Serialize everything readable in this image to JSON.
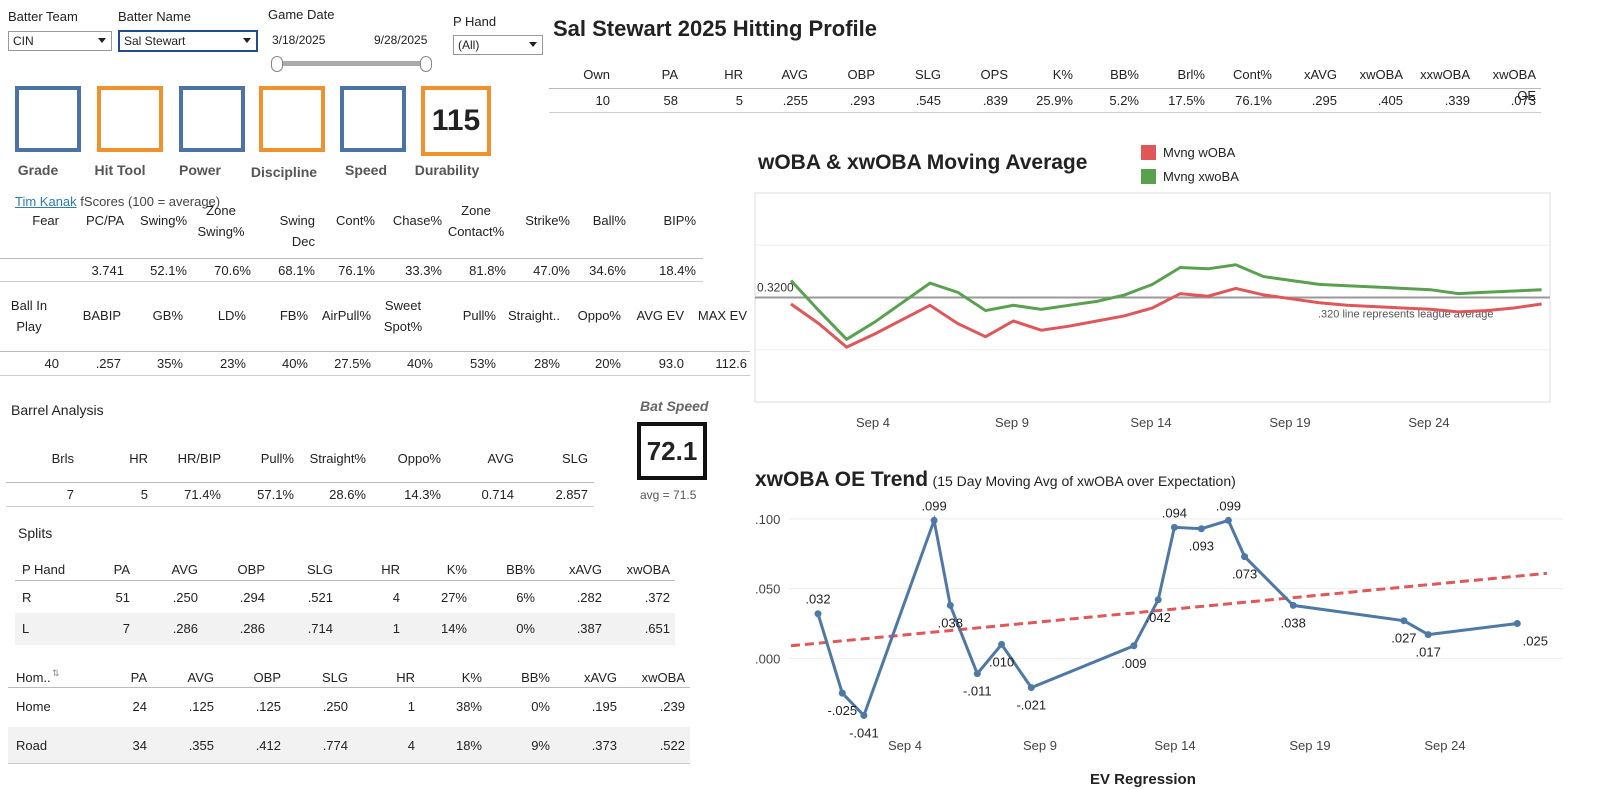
{
  "filters": {
    "batter_team_label": "Batter Team",
    "batter_team_value": "CIN",
    "batter_name_label": "Batter Name",
    "batter_name_value": "Sal Stewart",
    "game_date_label": "Game Date",
    "date_start": "3/18/2025",
    "date_end": "9/28/2025",
    "p_hand_label": "P Hand",
    "p_hand_value": "(All)"
  },
  "grades": [
    {
      "label": "Grade",
      "value": "",
      "color": "blue"
    },
    {
      "label": "Hit Tool",
      "value": "",
      "color": "orange"
    },
    {
      "label": "Power",
      "value": "",
      "color": "blue"
    },
    {
      "label": "Discipline",
      "value": "",
      "color": "orange"
    },
    {
      "label": "Speed",
      "value": "",
      "color": "blue"
    },
    {
      "label": "Durability",
      "value": "115",
      "color": "orange"
    }
  ],
  "fscores": {
    "link": "Tim Kanak",
    "suffix": "fScores (100 = average)"
  },
  "table1": {
    "headers": [
      "Fear",
      "PC/PA",
      "Swing%",
      "Zone Swing%",
      "Swing Dec",
      "Cont%",
      "Chase%",
      "Zone Contact%",
      "Strike%",
      "Ball%",
      "BIP%"
    ],
    "values": [
      "",
      "3.741",
      "52.1%",
      "70.6%",
      "68.1%",
      "76.1%",
      "33.3%",
      "81.8%",
      "47.0%",
      "34.6%",
      "18.4%"
    ]
  },
  "table2": {
    "headers": [
      "Ball In Play",
      "BABIP",
      "GB%",
      "LD%",
      "FB%",
      "AirPull%",
      "Sweet Spot%",
      "Pull%",
      "Straight..",
      "Oppo%",
      "AVG EV",
      "MAX EV"
    ],
    "values": [
      "40",
      ".257",
      "35%",
      "23%",
      "40%",
      "27.5%",
      "40%",
      "53%",
      "28%",
      "20%",
      "93.0",
      "112.6"
    ]
  },
  "barrel": {
    "title": "Barrel Analysis",
    "headers": [
      "Brls",
      "HR",
      "HR/BIP",
      "Pull%",
      "Straight%",
      "Oppo%",
      "AVG",
      "SLG"
    ],
    "values": [
      "7",
      "5",
      "71.4%",
      "57.1%",
      "28.6%",
      "14.3%",
      "0.714",
      "2.857"
    ]
  },
  "bat_speed": {
    "label": "Bat Speed",
    "value": "72.1",
    "avg": "avg = 71.5"
  },
  "splits": {
    "title": "Splits",
    "phand_headers": [
      "P Hand",
      "PA",
      "AVG",
      "OBP",
      "SLG",
      "HR",
      "K%",
      "BB%",
      "xAVG",
      "xwOBA"
    ],
    "phand_rows": [
      [
        "R",
        "51",
        ".250",
        ".294",
        ".521",
        "4",
        "27%",
        "6%",
        ".282",
        ".372"
      ],
      [
        "L",
        "7",
        ".286",
        ".286",
        ".714",
        "1",
        "14%",
        "0%",
        ".387",
        ".651"
      ]
    ],
    "home_headers": [
      "Hom..",
      "PA",
      "AVG",
      "OBP",
      "SLG",
      "HR",
      "K%",
      "BB%",
      "xAVG",
      "xwOBA"
    ],
    "home_rows": [
      [
        "Home",
        "24",
        ".125",
        ".125",
        ".250",
        "1",
        "38%",
        "0%",
        ".195",
        ".239"
      ],
      [
        "Road",
        "34",
        ".355",
        ".412",
        ".774",
        "4",
        "18%",
        "9%",
        ".373",
        ".522"
      ]
    ]
  },
  "profile": {
    "title": "Sal Stewart 2025 Hitting Profile",
    "headers": [
      "Own",
      "PA",
      "HR",
      "AVG",
      "OBP",
      "SLG",
      "OPS",
      "K%",
      "BB%",
      "Brl%",
      "Cont%",
      "xAVG",
      "xwOBA",
      "xxwOBA",
      "xwOBA OE"
    ],
    "values": [
      "10",
      "58",
      "5",
      ".255",
      ".293",
      ".545",
      ".839",
      "25.9%",
      "5.2%",
      "17.5%",
      "76.1%",
      ".295",
      ".405",
      ".339",
      ".073"
    ]
  },
  "chart_data": [
    {
      "type": "line",
      "title": "wOBA & xwOBA Moving Average",
      "ref_label": "0.3200",
      "ref_value": 0.32,
      "annotation": ".320 line represents league average",
      "x_ticks": [
        "Sep 4",
        "Sep 9",
        "Sep 14",
        "Sep 19",
        "Sep 24"
      ],
      "x_range": [
        1,
        29
      ],
      "ylim": [
        0.24,
        0.4
      ],
      "colors": {
        "wOBA": "#e15759",
        "xwOBA": "#59a14f"
      },
      "series": [
        {
          "name": "Mvng wOBA",
          "days": [
            1,
            2,
            3,
            4,
            5,
            6,
            7,
            8,
            9,
            10,
            11,
            12,
            13,
            14,
            15,
            16,
            17,
            18,
            19,
            20,
            21,
            22,
            23,
            24,
            25,
            26,
            27,
            28
          ],
          "values": [
            0.315,
            0.3,
            0.282,
            0.292,
            0.303,
            0.314,
            0.3,
            0.29,
            0.302,
            0.295,
            0.298,
            0.302,
            0.306,
            0.312,
            0.323,
            0.321,
            0.327,
            0.322,
            0.319,
            0.316,
            0.314,
            0.313,
            0.312,
            0.311,
            0.309,
            0.31,
            0.312,
            0.315
          ]
        },
        {
          "name": "Mvng xwoBA",
          "days": [
            1,
            2,
            3,
            4,
            5,
            6,
            7,
            8,
            9,
            10,
            11,
            12,
            13,
            14,
            15,
            16,
            17,
            18,
            19,
            20,
            21,
            22,
            23,
            24,
            25,
            26,
            27,
            28
          ],
          "values": [
            0.333,
            0.31,
            0.288,
            0.301,
            0.316,
            0.331,
            0.324,
            0.31,
            0.314,
            0.311,
            0.314,
            0.317,
            0.322,
            0.33,
            0.343,
            0.342,
            0.345,
            0.336,
            0.333,
            0.33,
            0.329,
            0.328,
            0.327,
            0.326,
            0.323,
            0.324,
            0.325,
            0.326
          ]
        }
      ]
    },
    {
      "type": "line",
      "title": "xwOBA OE Trend",
      "subtitle": "(15 Day Moving Avg of xwOBA over Expectation)",
      "x_ticks": [
        "Sep 4",
        "Sep 9",
        "Sep 14",
        "Sep 19",
        "Sep 24"
      ],
      "y_ticks": [
        ".100",
        ".050",
        ".000"
      ],
      "ylim": [
        -0.05,
        0.105
      ],
      "x_range": [
        1,
        29
      ],
      "color": "#4e79a7",
      "trend_color": "#e15759",
      "trend": [
        [
          1,
          0.009
        ],
        [
          29,
          0.061
        ]
      ],
      "points": [
        {
          "day": 2,
          "value": 0.032,
          "label": ".032"
        },
        {
          "day": 2.9,
          "value": -0.025,
          "label": "-.025"
        },
        {
          "day": 3.7,
          "value": -0.041,
          "label": "-.041"
        },
        {
          "day": 6.3,
          "value": 0.099,
          "label": ".099"
        },
        {
          "day": 6.9,
          "value": 0.038,
          "label": ".038"
        },
        {
          "day": 7.9,
          "value": -0.011,
          "label": "-.011"
        },
        {
          "day": 8.8,
          "value": 0.01,
          "label": ".010"
        },
        {
          "day": 9.9,
          "value": -0.021,
          "label": "-.021"
        },
        {
          "day": 13.7,
          "value": 0.009,
          "label": ".009"
        },
        {
          "day": 14.6,
          "value": 0.042,
          "label": ".042"
        },
        {
          "day": 15.2,
          "value": 0.094,
          "label": ".094"
        },
        {
          "day": 16.2,
          "value": 0.093,
          "label": ".093"
        },
        {
          "day": 17.2,
          "value": 0.099,
          "label": ".099"
        },
        {
          "day": 17.8,
          "value": 0.073,
          "label": ".073"
        },
        {
          "day": 19.6,
          "value": 0.038,
          "label": ".038"
        },
        {
          "day": 23.7,
          "value": 0.027,
          "label": ".027"
        },
        {
          "day": 24.6,
          "value": 0.017,
          "label": ".017"
        },
        {
          "day": 27.9,
          "value": 0.025,
          "label": ".025"
        }
      ]
    }
  ],
  "legend_labels": {
    "w": "Mvng wOBA",
    "x": "Mvng xwoBA"
  },
  "footer_fragment": "EV Regression"
}
